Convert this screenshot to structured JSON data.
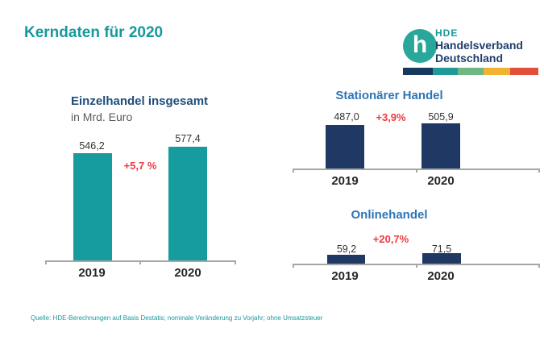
{
  "page": {
    "title": "Kerndaten für 2020",
    "footer": "Quelle: HDE-Berechnungen auf Basis Destatis; nominale Veränderung zu Vorjahr; ohne Umsatzsteuer"
  },
  "logo": {
    "monogram": "h",
    "acronym": "HDE",
    "line1": "Handelsverband",
    "line2": "Deutschland",
    "stripe_colors": [
      "#17395e",
      "#1f9a96",
      "#6db884",
      "#f2b234",
      "#e2503c"
    ]
  },
  "colors": {
    "teal_accent": "#17999c",
    "teal_bar": "#169c9e",
    "navy_bar": "#1f3864",
    "left_title_blue": "#1f4e79",
    "right_title_blue": "#2e75b6",
    "change_red": "#ee3a40",
    "axis_gray": "#a6a6a6",
    "label_dark": "#262626",
    "value_gray": "#333333",
    "subtitle_gray": "#595959"
  },
  "chart_data": [
    {
      "type": "bar",
      "title": "Einzelhandel insgesamt",
      "ylabel": "in Mrd. Euro",
      "categories": [
        "2019",
        "2020"
      ],
      "values": [
        546.2,
        577.4
      ],
      "values_display": [
        "546,2",
        "577,4"
      ],
      "change_label": "+5,7 %",
      "bar_color": "#169c9e",
      "legend": "none",
      "grid": "off"
    },
    {
      "type": "bar",
      "title": "Stationärer Handel",
      "categories": [
        "2019",
        "2020"
      ],
      "values": [
        487.0,
        505.9
      ],
      "values_display": [
        "487,0",
        "505,9"
      ],
      "change_label": "+3,9%",
      "bar_color": "#1f3864",
      "legend": "none",
      "grid": "off"
    },
    {
      "type": "bar",
      "title": "Onlinehandel",
      "categories": [
        "2019",
        "2020"
      ],
      "values": [
        59.2,
        71.5
      ],
      "values_display": [
        "59,2",
        "71,5"
      ],
      "change_label": "+20,7%",
      "bar_color": "#1f3864",
      "legend": "none",
      "grid": "off"
    }
  ]
}
